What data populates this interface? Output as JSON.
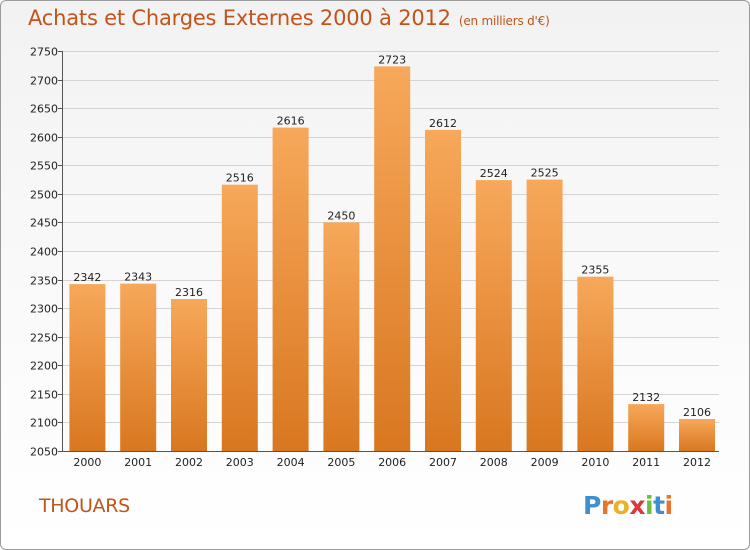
{
  "header": {
    "title": "Achats et Charges Externes 2000 à 2012",
    "subtitle": "(en milliers d'€)"
  },
  "footer": {
    "city": "THOUARS",
    "logo": {
      "letters": [
        "P",
        "r",
        "o",
        "x",
        "i",
        "t",
        "i"
      ],
      "colors": [
        "#3d8fd4",
        "#e8732a",
        "#e8b22a",
        "#d93a3a",
        "#6bbf3a",
        "#3d8fd4",
        "#e8732a"
      ]
    }
  },
  "colors": {
    "bar_top": "#f7a85a",
    "bar_bottom": "#d97720",
    "grid": "#d4d4d4",
    "axis": "#555555",
    "title": "#c0541a"
  },
  "chart_data": {
    "type": "bar",
    "categories": [
      "2000",
      "2001",
      "2002",
      "2003",
      "2004",
      "2005",
      "2006",
      "2007",
      "2008",
      "2009",
      "2010",
      "2011",
      "2012"
    ],
    "values": [
      2342,
      2343,
      2316,
      2516,
      2616,
      2450,
      2723,
      2612,
      2524,
      2525,
      2355,
      2132,
      2106
    ],
    "data_labels": [
      "2342",
      "2343",
      "2316",
      "2516",
      "2616",
      "2450",
      "2723",
      "2612",
      "2524",
      "2525",
      "2355",
      "2132",
      "2106"
    ],
    "ylim": [
      2050,
      2750
    ],
    "yticks": [
      2050,
      2100,
      2150,
      2200,
      2250,
      2300,
      2350,
      2400,
      2450,
      2500,
      2550,
      2600,
      2650,
      2700,
      2750
    ],
    "ytick_labels": [
      "2050",
      "2100",
      "2150",
      "2200",
      "2250",
      "2300",
      "2350",
      "2400",
      "2450",
      "2500",
      "2550",
      "2600",
      "2650",
      "2700",
      "2750"
    ],
    "grid": true,
    "legend": "none"
  }
}
